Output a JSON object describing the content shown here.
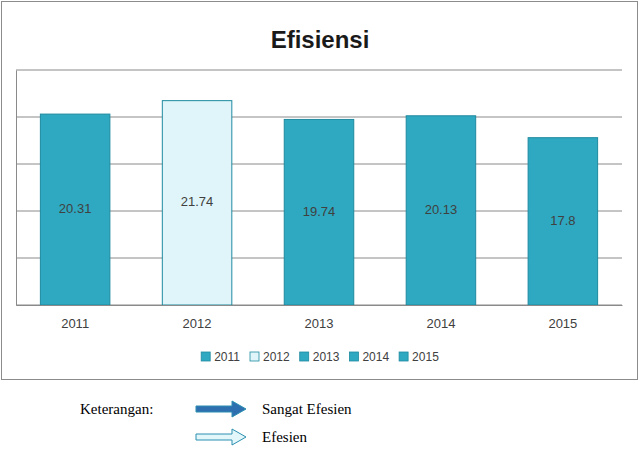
{
  "chart_data": {
    "type": "bar",
    "title": "Efisiensi",
    "categories": [
      "2011",
      "2012",
      "2013",
      "2014",
      "2015"
    ],
    "values": [
      20.31,
      21.74,
      19.74,
      20.13,
      17.8
    ],
    "colors": [
      "#2fa9c1",
      "#dff5f9",
      "#2fa9c1",
      "#2fa9c1",
      "#2fa9c1"
    ],
    "ylim": [
      0,
      25
    ],
    "yticks": [
      0,
      5,
      10,
      15,
      20,
      25
    ],
    "grid": true,
    "data_labels": true,
    "tick_labels": "x",
    "legend": "bottom",
    "annotations": {
      "title": "Keterangan:",
      "items": [
        {
          "text": "Sangat Efesien",
          "color": "#2e6fb0"
        },
        {
          "text": "Efesien",
          "color": "#e3f7fb"
        }
      ]
    }
  }
}
